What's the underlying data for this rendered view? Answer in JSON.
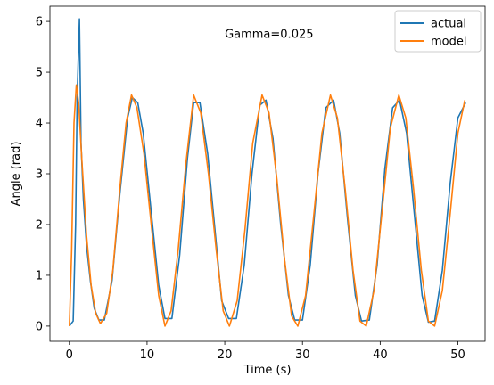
{
  "chart_data": {
    "type": "line",
    "title": "",
    "xlabel": "Time (s)",
    "ylabel": "Angle (rad)",
    "xlim": [
      -2.5,
      53.5
    ],
    "ylim": [
      -0.3,
      6.3
    ],
    "xticks": [
      0,
      10,
      20,
      30,
      40,
      50
    ],
    "yticks": [
      0,
      1,
      2,
      3,
      4,
      5,
      6
    ],
    "grid": false,
    "legend_position": "top-right",
    "annotation": {
      "text": "Gamma=0.025",
      "x": 20,
      "y": 5.75
    },
    "series": [
      {
        "name": "actual",
        "color": "#1f77b4",
        "points": [
          [
            0,
            0
          ],
          [
            0.5,
            0.1
          ],
          [
            0.8,
            2.0
          ],
          [
            1.0,
            4.5
          ],
          [
            1.3,
            6.05
          ],
          [
            1.5,
            3.6
          ],
          [
            1.8,
            2.5
          ],
          [
            2.2,
            1.6
          ],
          [
            2.7,
            0.9
          ],
          [
            3.2,
            0.35
          ],
          [
            3.8,
            0.12
          ],
          [
            4.5,
            0.12
          ],
          [
            5.5,
            0.9
          ],
          [
            6.5,
            2.6
          ],
          [
            7.5,
            4.1
          ],
          [
            8.1,
            4.5
          ],
          [
            8.8,
            4.4
          ],
          [
            9.5,
            3.8
          ],
          [
            10.5,
            2.3
          ],
          [
            11.5,
            0.8
          ],
          [
            12.3,
            0.15
          ],
          [
            13.2,
            0.15
          ],
          [
            14.2,
            1.4
          ],
          [
            15.2,
            3.3
          ],
          [
            16.0,
            4.4
          ],
          [
            16.8,
            4.4
          ],
          [
            17.8,
            3.4
          ],
          [
            18.8,
            1.8
          ],
          [
            19.6,
            0.5
          ],
          [
            20.5,
            0.15
          ],
          [
            21.5,
            0.15
          ],
          [
            22.5,
            1.2
          ],
          [
            23.5,
            3.0
          ],
          [
            24.5,
            4.35
          ],
          [
            25.3,
            4.45
          ],
          [
            26.2,
            3.7
          ],
          [
            27.2,
            2.0
          ],
          [
            28.2,
            0.6
          ],
          [
            29.0,
            0.12
          ],
          [
            30.0,
            0.12
          ],
          [
            31.0,
            1.2
          ],
          [
            32.0,
            3.0
          ],
          [
            33.0,
            4.3
          ],
          [
            34.0,
            4.45
          ],
          [
            34.8,
            3.8
          ],
          [
            35.8,
            2.1
          ],
          [
            36.8,
            0.6
          ],
          [
            37.6,
            0.1
          ],
          [
            38.6,
            0.12
          ],
          [
            39.6,
            1.2
          ],
          [
            40.6,
            3.1
          ],
          [
            41.6,
            4.3
          ],
          [
            42.5,
            4.45
          ],
          [
            43.4,
            3.8
          ],
          [
            44.4,
            2.2
          ],
          [
            45.4,
            0.6
          ],
          [
            46.2,
            0.08
          ],
          [
            47.0,
            0.1
          ],
          [
            48.0,
            1.1
          ],
          [
            49.0,
            2.8
          ],
          [
            50.0,
            4.1
          ],
          [
            51.0,
            4.4
          ]
        ]
      },
      {
        "name": "model",
        "color": "#ff7f0e",
        "points": [
          [
            0,
            0
          ],
          [
            0.3,
            1.5
          ],
          [
            0.6,
            4.0
          ],
          [
            0.9,
            4.75
          ],
          [
            1.2,
            4.4
          ],
          [
            1.6,
            3.3
          ],
          [
            2.2,
            1.8
          ],
          [
            2.8,
            0.8
          ],
          [
            3.4,
            0.25
          ],
          [
            4.0,
            0.05
          ],
          [
            4.8,
            0.25
          ],
          [
            5.6,
            1.1
          ],
          [
            6.5,
            2.7
          ],
          [
            7.3,
            4.0
          ],
          [
            8.0,
            4.55
          ],
          [
            8.7,
            4.3
          ],
          [
            9.6,
            3.4
          ],
          [
            10.6,
            1.9
          ],
          [
            11.5,
            0.6
          ],
          [
            12.3,
            0.0
          ],
          [
            13.1,
            0.3
          ],
          [
            14.0,
            1.5
          ],
          [
            15.0,
            3.2
          ],
          [
            16.0,
            4.55
          ],
          [
            16.9,
            4.2
          ],
          [
            17.9,
            3.0
          ],
          [
            18.9,
            1.5
          ],
          [
            19.8,
            0.3
          ],
          [
            20.6,
            0.0
          ],
          [
            21.6,
            0.5
          ],
          [
            22.6,
            1.9
          ],
          [
            23.6,
            3.6
          ],
          [
            24.8,
            4.55
          ],
          [
            25.7,
            4.2
          ],
          [
            26.7,
            2.9
          ],
          [
            27.7,
            1.3
          ],
          [
            28.6,
            0.2
          ],
          [
            29.4,
            0.0
          ],
          [
            30.4,
            0.6
          ],
          [
            31.4,
            2.1
          ],
          [
            32.5,
            3.8
          ],
          [
            33.6,
            4.55
          ],
          [
            34.5,
            4.1
          ],
          [
            35.5,
            2.7
          ],
          [
            36.5,
            1.1
          ],
          [
            37.4,
            0.1
          ],
          [
            38.2,
            0.0
          ],
          [
            39.2,
            0.7
          ],
          [
            40.2,
            2.2
          ],
          [
            41.3,
            3.9
          ],
          [
            42.4,
            4.55
          ],
          [
            43.3,
            4.1
          ],
          [
            44.3,
            2.7
          ],
          [
            45.3,
            1.1
          ],
          [
            46.2,
            0.1
          ],
          [
            47.0,
            0.0
          ],
          [
            48.0,
            0.7
          ],
          [
            49.0,
            2.2
          ],
          [
            50.0,
            3.8
          ],
          [
            50.9,
            4.45
          ]
        ]
      }
    ]
  }
}
